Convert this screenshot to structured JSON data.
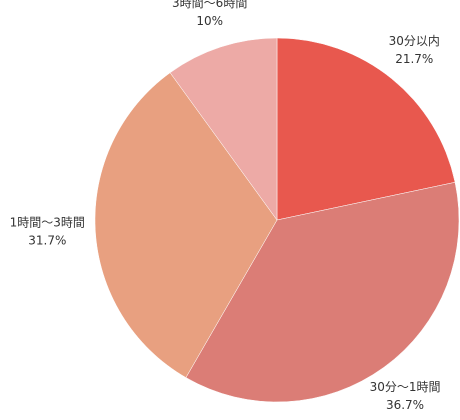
{
  "chart_data": {
    "type": "pie",
    "categories": [
      "30分以内",
      "30分〜1時間",
      "1時間〜3時間",
      "3時間〜6時間"
    ],
    "values": [
      21.7,
      36.7,
      31.7,
      10
    ],
    "value_labels": [
      "21.7%",
      "36.7%",
      "31.7%",
      "10%"
    ],
    "colors": [
      "#e8584e",
      "#db7d76",
      "#e8a080",
      "#edaaa6"
    ]
  }
}
